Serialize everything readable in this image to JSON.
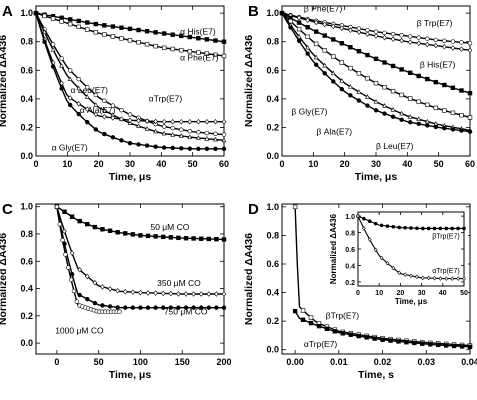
{
  "chart_data": [
    {
      "panel": "A",
      "type": "scatter",
      "xlabel": "Time, μs",
      "ylabel": "Normalized ΔA436",
      "xlim": [
        0,
        60
      ],
      "ylim": [
        0.0,
        1.05
      ],
      "xticks": [
        0,
        10,
        20,
        30,
        40,
        50,
        60
      ],
      "yticks": [
        0.0,
        0.2,
        0.4,
        0.6,
        0.8,
        1.0
      ],
      "series": [
        {
          "name": "α His(E7)",
          "marker": "filled-square",
          "decay": "mono",
          "x": [
            0,
            10,
            20,
            30,
            40,
            50,
            60
          ],
          "y": [
            1.0,
            0.96,
            0.92,
            0.89,
            0.86,
            0.83,
            0.8
          ],
          "label_at": [
            46,
            0.85
          ]
        },
        {
          "name": "α Phe(E7)",
          "marker": "open-square",
          "decay": "mono",
          "x": [
            0,
            10,
            20,
            30,
            40,
            50,
            60
          ],
          "y": [
            1.0,
            0.93,
            0.86,
            0.81,
            0.76,
            0.73,
            0.7
          ],
          "label_at": [
            46,
            0.67
          ]
        },
        {
          "name": "α Leu(E7)",
          "marker": "open-circle",
          "decay": "mono",
          "x": [
            0,
            10,
            20,
            30,
            40,
            50,
            60
          ],
          "y": [
            1.0,
            0.62,
            0.41,
            0.29,
            0.21,
            0.17,
            0.15
          ],
          "label_at": [
            11,
            0.44
          ]
        },
        {
          "name": "α Ala(E7)",
          "marker": "open-triangle",
          "decay": "mono",
          "x": [
            0,
            10,
            20,
            30,
            40,
            50,
            60
          ],
          "y": [
            1.0,
            0.56,
            0.34,
            0.23,
            0.16,
            0.13,
            0.11
          ],
          "label_at": [
            14,
            0.3
          ]
        },
        {
          "name": "αTrp(E7)",
          "marker": "open-diamond",
          "decay": "mono",
          "x": [
            0,
            10,
            20,
            30,
            40,
            50,
            60
          ],
          "y": [
            1.0,
            0.42,
            0.28,
            0.25,
            0.24,
            0.24,
            0.24
          ],
          "label_at": [
            36,
            0.38
          ]
        },
        {
          "name": "α Gly(E7)",
          "marker": "filled-circle",
          "decay": "mono",
          "x": [
            0,
            10,
            20,
            30,
            40,
            50,
            60
          ],
          "y": [
            1.0,
            0.38,
            0.17,
            0.09,
            0.06,
            0.05,
            0.05
          ],
          "label_at": [
            5,
            0.04
          ]
        }
      ]
    },
    {
      "panel": "B",
      "type": "scatter",
      "xlabel": "Time, μs",
      "ylabel": "Normalized ΔA436",
      "xlim": [
        0,
        60
      ],
      "ylim": [
        0.0,
        1.05
      ],
      "xticks": [
        0,
        10,
        20,
        30,
        40,
        50,
        60
      ],
      "yticks": [
        0.0,
        0.2,
        0.4,
        0.6,
        0.8,
        1.0
      ],
      "series": [
        {
          "name": "β Phe(E7)",
          "marker": "open-circle",
          "decay": "mono",
          "x": [
            0,
            10,
            20,
            30,
            40,
            50,
            60
          ],
          "y": [
            1.0,
            0.95,
            0.91,
            0.87,
            0.84,
            0.81,
            0.79
          ],
          "label_at": [
            7,
            1.01
          ]
        },
        {
          "name": "β Trp(E7)",
          "marker": "open-diamond",
          "decay": "mono",
          "x": [
            0,
            10,
            20,
            30,
            40,
            50,
            60
          ],
          "y": [
            1.0,
            0.94,
            0.89,
            0.84,
            0.8,
            0.77,
            0.74
          ],
          "label_at": [
            43,
            0.91
          ]
        },
        {
          "name": "β His(E7)",
          "marker": "filled-square",
          "decay": "mono",
          "x": [
            0,
            10,
            20,
            30,
            40,
            50,
            60
          ],
          "y": [
            1.0,
            0.88,
            0.78,
            0.68,
            0.59,
            0.51,
            0.44
          ],
          "label_at": [
            44,
            0.62
          ]
        },
        {
          "name": "β Gly(E7)",
          "marker": "open-square",
          "decay": "mono",
          "x": [
            0,
            10,
            20,
            30,
            40,
            50,
            60
          ],
          "y": [
            1.0,
            0.8,
            0.64,
            0.51,
            0.41,
            0.33,
            0.27
          ],
          "label_at": [
            3,
            0.29
          ]
        },
        {
          "name": "β Ala(E7)",
          "marker": "open-triangle",
          "decay": "mono",
          "x": [
            0,
            10,
            20,
            30,
            40,
            50,
            60
          ],
          "y": [
            1.0,
            0.71,
            0.51,
            0.38,
            0.28,
            0.22,
            0.18
          ],
          "label_at": [
            11,
            0.15
          ]
        },
        {
          "name": "β Leu(E7)",
          "marker": "filled-circle",
          "decay": "mono",
          "x": [
            0,
            10,
            20,
            30,
            40,
            50,
            60
          ],
          "y": [
            1.0,
            0.66,
            0.45,
            0.32,
            0.24,
            0.2,
            0.17
          ],
          "label_at": [
            30,
            0.05
          ]
        }
      ]
    },
    {
      "panel": "C",
      "type": "scatter",
      "xlabel": "Time, μs",
      "ylabel": "Normalized ΔA436",
      "xlim": [
        -25,
        200
      ],
      "ylim": [
        -0.08,
        1.02
      ],
      "xticks": [
        0,
        50,
        100,
        150,
        200
      ],
      "yticks": [
        0.0,
        0.2,
        0.4,
        0.6,
        0.8,
        1.0
      ],
      "series": [
        {
          "name": "50 μM CO",
          "marker": "filled-square",
          "x": [
            0,
            25,
            50,
            75,
            100,
            150,
            200
          ],
          "y": [
            1.0,
            0.9,
            0.84,
            0.81,
            0.79,
            0.77,
            0.76
          ],
          "label_at": [
            112,
            0.83
          ]
        },
        {
          "name": "350 μM CO",
          "marker": "open-diamond",
          "x": [
            0,
            25,
            50,
            75,
            100,
            150,
            200
          ],
          "y": [
            1.0,
            0.55,
            0.42,
            0.38,
            0.37,
            0.36,
            0.36
          ],
          "label_at": [
            120,
            0.42
          ]
        },
        {
          "name": "750 μM CO",
          "marker": "filled-circle",
          "x": [
            0,
            25,
            50,
            75,
            100,
            150,
            200
          ],
          "y": [
            1.0,
            0.36,
            0.28,
            0.26,
            0.26,
            0.26,
            0.26
          ],
          "label_at": [
            128,
            0.21
          ]
        },
        {
          "name": "1000 μM CO",
          "marker": "open-circle",
          "x": [
            0,
            25,
            50,
            75
          ],
          "y": [
            1.0,
            0.28,
            0.23,
            0.23
          ],
          "label_at": [
            -2,
            0.07
          ]
        }
      ]
    },
    {
      "panel": "D",
      "type": "scatter",
      "xlabel": "Time, s",
      "ylabel": "Normalized ΔA436",
      "xlim": [
        -0.003,
        0.04
      ],
      "ylim": [
        -0.03,
        1.02
      ],
      "xticks": [
        0.0,
        0.01,
        0.02,
        0.03,
        0.04
      ],
      "xtick_labels": [
        "0.00",
        "0.01",
        "0.02",
        "0.03",
        "0.04"
      ],
      "yticks": [
        0.0,
        0.2,
        0.4,
        0.6,
        0.8,
        1.0
      ],
      "series": [
        {
          "name": "βTrp(E7)",
          "marker": "open-square",
          "x": [
            0,
            0.001,
            0.005,
            0.01,
            0.02,
            0.03,
            0.04
          ],
          "y": [
            1.0,
            0.3,
            0.19,
            0.13,
            0.08,
            0.05,
            0.03
          ],
          "label_at": [
            0.007,
            0.22
          ]
        },
        {
          "name": "αTrp(E7)",
          "marker": "filled-square",
          "x": [
            0,
            0.001,
            0.005,
            0.01,
            0.02,
            0.03,
            0.04
          ],
          "y": [
            0.27,
            0.22,
            0.17,
            0.12,
            0.07,
            0.04,
            0.02
          ],
          "label_at": [
            0.002,
            0.02
          ]
        }
      ],
      "inset": {
        "xlabel": "Time, μs",
        "ylabel": "Normalized ΔA436",
        "xlim": [
          0,
          50
        ],
        "ylim": [
          0.15,
          1.05
        ],
        "xticks": [
          0,
          10,
          20,
          30,
          40,
          50
        ],
        "yticks": [
          0.2,
          0.4,
          0.6,
          0.8,
          1.0
        ],
        "series": [
          {
            "name": "βTrp(E7)",
            "marker": "filled-circle",
            "decay": "mono",
            "x": [
              0,
              10,
              20,
              30,
              40,
              50
            ],
            "y": [
              1.0,
              0.89,
              0.86,
              0.85,
              0.85,
              0.85
            ],
            "label_at": [
              35,
              0.73
            ]
          },
          {
            "name": "αTrp(E7)",
            "marker": "open-diamond",
            "decay": "mono",
            "x": [
              0,
              10,
              20,
              30,
              40,
              50
            ],
            "y": [
              1.0,
              0.52,
              0.3,
              0.25,
              0.24,
              0.24
            ],
            "label_at": [
              35,
              0.31
            ]
          }
        ]
      }
    }
  ]
}
